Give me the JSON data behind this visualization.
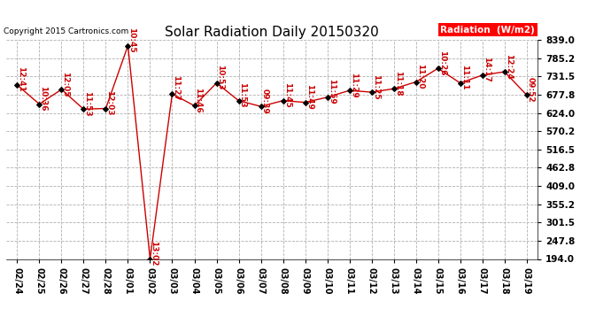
{
  "title": "Solar Radiation Daily 20150320",
  "copyright": "Copyright 2015 Cartronics.com",
  "legend_label": "Radiation  (W/m2)",
  "dates": [
    "02/24",
    "02/25",
    "02/26",
    "02/27",
    "02/28",
    "03/01",
    "03/02",
    "03/03",
    "03/04",
    "03/05",
    "03/06",
    "03/07",
    "03/08",
    "03/09",
    "03/10",
    "03/11",
    "03/12",
    "03/13",
    "03/14",
    "03/15",
    "03/16",
    "03/17",
    "03/18",
    "03/19"
  ],
  "values": [
    706,
    650,
    693,
    635,
    637,
    822,
    194,
    680,
    645,
    712,
    660,
    643,
    660,
    655,
    670,
    690,
    685,
    695,
    715,
    755,
    712,
    735,
    745,
    677
  ],
  "time_labels": [
    "12:41",
    "10:36",
    "12:05",
    "11:53",
    "12:03",
    "10:45",
    "13:02",
    "11:27",
    "11:46",
    "10:53",
    "11:53",
    "09:39",
    "11:45",
    "11:49",
    "11:59",
    "11:29",
    "11:25",
    "11:18",
    "11:20",
    "10:26",
    "11:11",
    "14:17",
    "12:24",
    "09:52"
  ],
  "line_color": "#cc0000",
  "marker_color": "#000000",
  "bg_color": "#ffffff",
  "grid_color": "#b0b0b0",
  "text_color": "#cc0000",
  "ylim_min": 194.0,
  "ylim_max": 839.0,
  "yticks": [
    194.0,
    247.8,
    301.5,
    355.2,
    409.0,
    462.8,
    516.5,
    570.2,
    624.0,
    677.8,
    731.5,
    785.2,
    839.0
  ],
  "ytick_labels": [
    "194.0",
    "247.8",
    "301.5",
    "355.2",
    "409.0",
    "462.8",
    "516.5",
    "570.2",
    "624.0",
    "677.8",
    "731.5",
    "785.2",
    "839.0"
  ],
  "title_fontsize": 11,
  "label_fontsize": 6.5,
  "copyright_fontsize": 6.5,
  "xtick_fontsize": 7,
  "ytick_fontsize": 7.5
}
